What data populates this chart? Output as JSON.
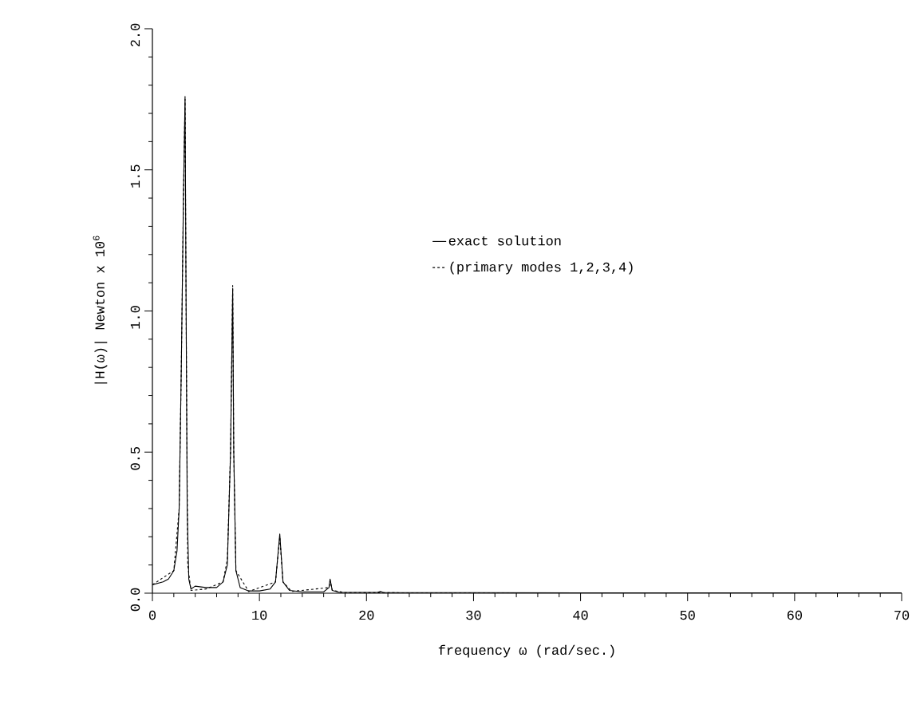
{
  "chart_data": {
    "type": "line",
    "xlabel": "frequency ω (rad/sec.)",
    "ylabel": "|H(ω)| Newton x 10$^{6}$",
    "xlim": [
      0,
      70
    ],
    "ylim": [
      0,
      2.0
    ],
    "xticks": [
      0,
      10,
      20,
      30,
      40,
      50,
      60,
      70
    ],
    "yticks": [
      {
        "value": 0,
        "label": "0.0"
      },
      {
        "value": 0.5,
        "label": "0.5"
      },
      {
        "value": 1.0,
        "label": "1.0"
      },
      {
        "value": 1.5,
        "label": "1.5"
      },
      {
        "value": 2.0,
        "label": "2.0"
      }
    ],
    "grid": false,
    "legend": "right",
    "series": [
      {
        "name": "exact solution",
        "color": "#000000",
        "line_style": "solid",
        "x": [
          0,
          1,
          1.5,
          2,
          2.3,
          2.5,
          2.7,
          2.9,
          3.05,
          3.15,
          3.25,
          3.4,
          3.6,
          4,
          5,
          6,
          6.6,
          7.0,
          7.3,
          7.5,
          7.6,
          7.8,
          8.2,
          9,
          10,
          11,
          11.5,
          11.9,
          12.2,
          12.8,
          14,
          16,
          16.5,
          16.6,
          16.8,
          17.5,
          21,
          21.3,
          21.6,
          30,
          40,
          50,
          60,
          70
        ],
        "values": [
          0.03,
          0.04,
          0.05,
          0.08,
          0.15,
          0.3,
          0.8,
          1.4,
          1.76,
          1.0,
          0.3,
          0.05,
          0.015,
          0.025,
          0.02,
          0.02,
          0.04,
          0.1,
          0.5,
          1.08,
          0.5,
          0.08,
          0.02,
          0.008,
          0.008,
          0.015,
          0.04,
          0.21,
          0.04,
          0.01,
          0.005,
          0.005,
          0.02,
          0.05,
          0.01,
          0.003,
          0.003,
          0.006,
          0.002,
          0.002,
          0.001,
          0.001,
          0.001,
          0.001
        ]
      },
      {
        "name": "(primary modes 1,2,3,4)",
        "color": "#000000",
        "line_style": "dashed",
        "x": [
          0,
          2,
          2.5,
          2.7,
          2.9,
          3.05,
          3.15,
          3.3,
          3.6,
          5,
          6.6,
          7,
          7.3,
          7.5,
          7.6,
          7.8,
          9,
          11.5,
          11.9,
          12.2,
          13,
          16.5,
          16.6,
          16.8,
          18,
          30,
          70
        ],
        "values": [
          0.03,
          0.08,
          0.3,
          0.8,
          1.4,
          1.75,
          1.0,
          0.1,
          0.01,
          0.015,
          0.04,
          0.12,
          0.5,
          1.09,
          0.5,
          0.08,
          0.006,
          0.04,
          0.2,
          0.04,
          0.006,
          0.02,
          0.045,
          0.01,
          0.002,
          0.001,
          0.0
        ]
      }
    ]
  }
}
